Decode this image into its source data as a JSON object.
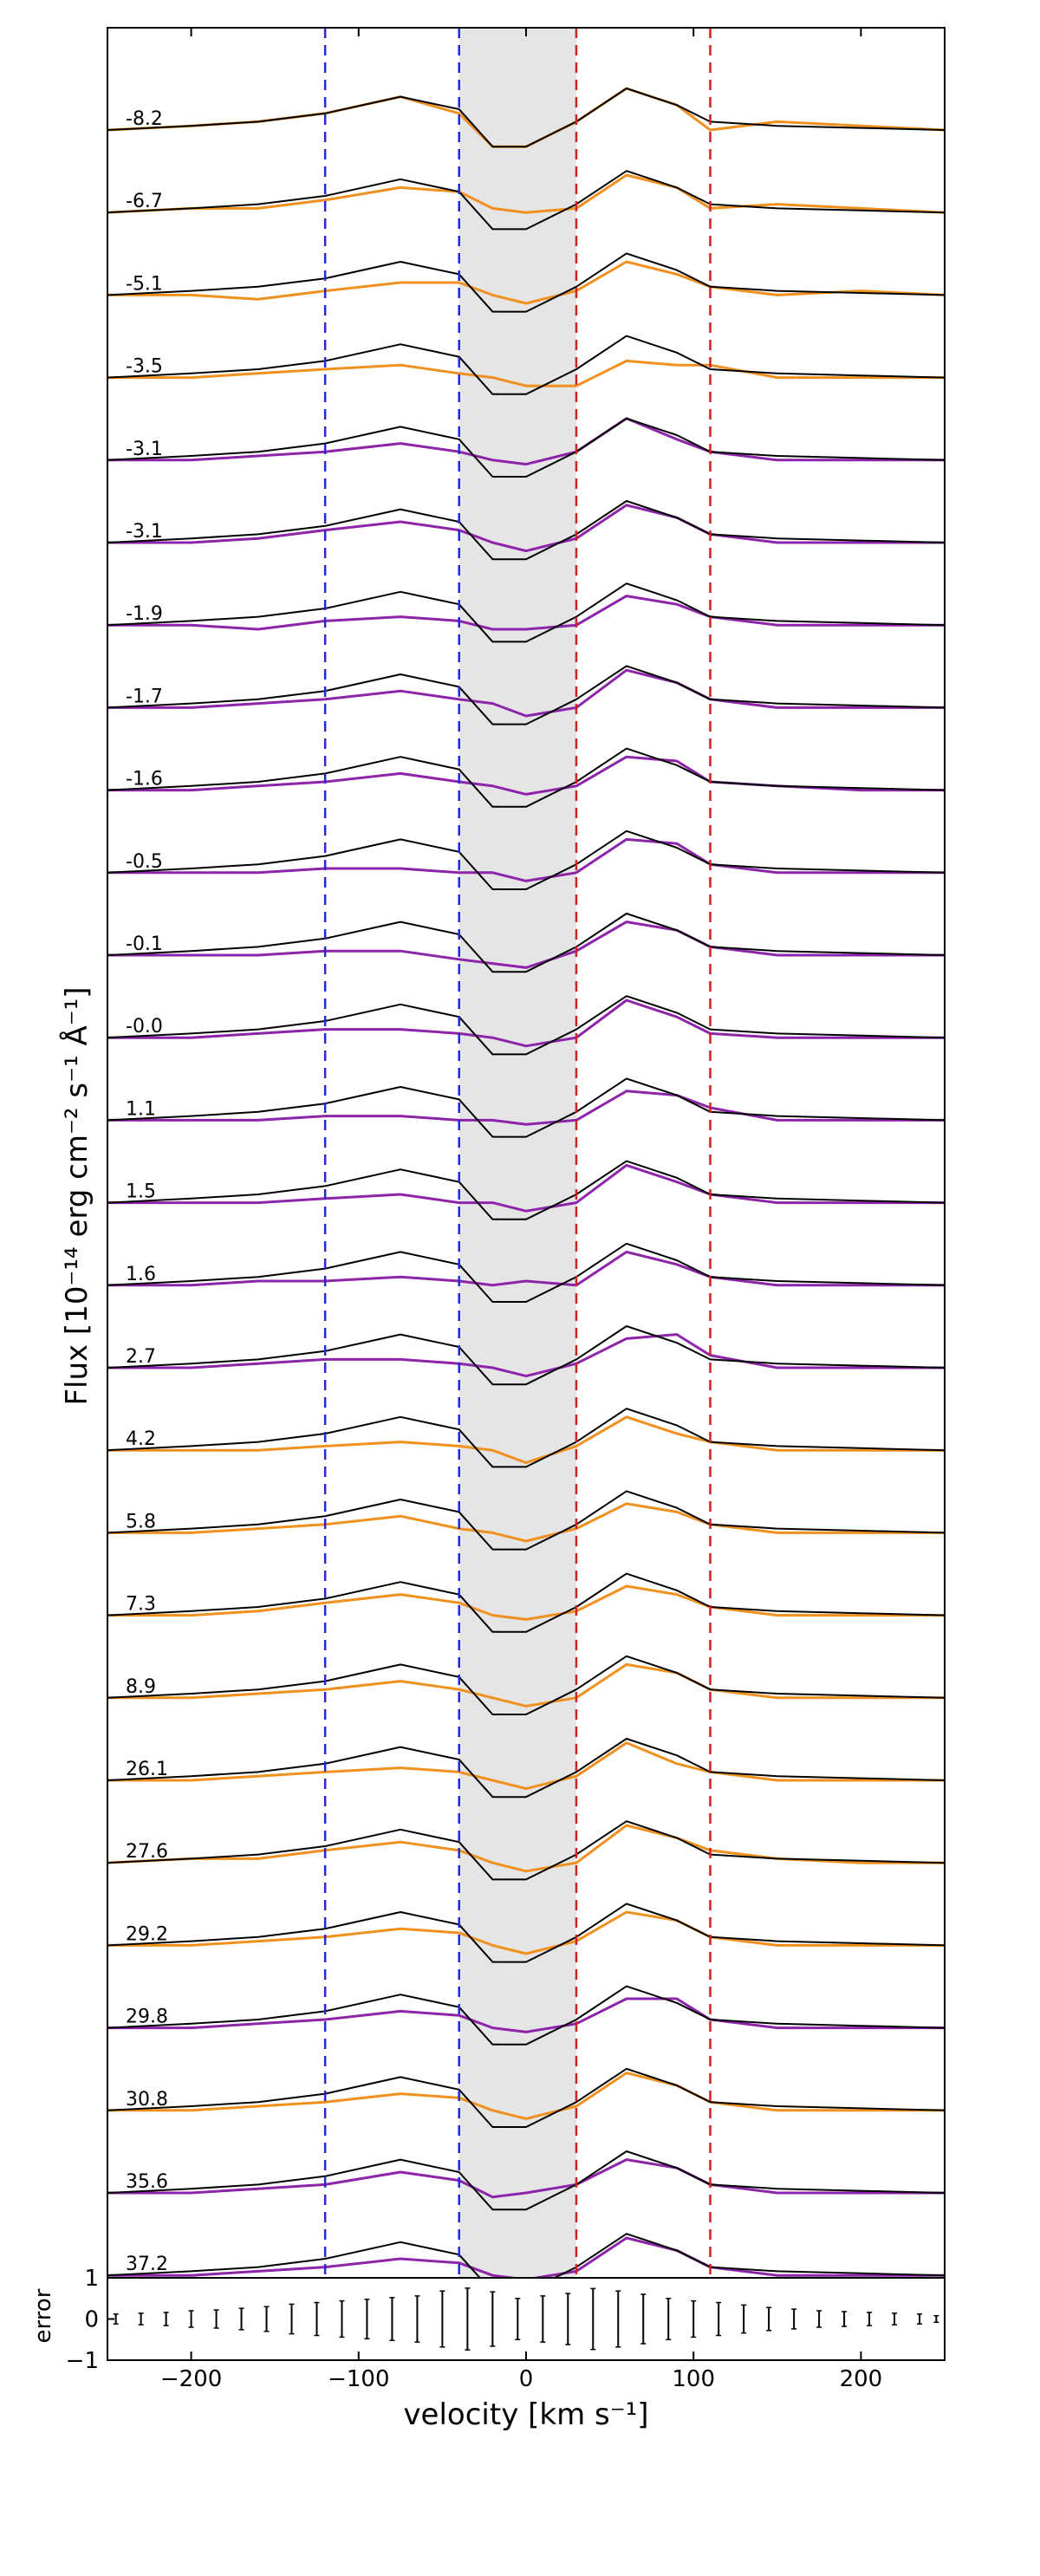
{
  "chart_data": {
    "type": "line",
    "title": "",
    "xlabel": "velocity [km s⁻¹]",
    "ylabel": "Flux [10⁻¹⁴ erg cm⁻² s⁻¹ Å⁻¹]",
    "xlim": [
      -250,
      250
    ],
    "xticks": [
      -200,
      -100,
      0,
      100,
      200
    ],
    "xtick_labels": [
      "−200",
      "−100",
      "0",
      "100",
      "200"
    ],
    "shaded_region": [
      -40,
      30
    ],
    "blue_dashed_lines": [
      -120,
      -40
    ],
    "red_dashed_lines": [
      30,
      110
    ],
    "colors": {
      "orange": "#f0901e",
      "purple": "#8e24aa",
      "model": "#000000",
      "shade": "#e5e5e5",
      "blue": "#1f2bd6",
      "red": "#d42020"
    },
    "series": [
      {
        "label": "-8.2",
        "color": "orange",
        "shape": [
          0.0,
          0.2,
          0.4,
          0.8,
          1.6,
          0.8,
          -0.8,
          -0.8,
          0.4,
          2.0,
          1.2,
          0.0,
          0.4,
          0.2,
          0.0
        ]
      },
      {
        "label": "-6.7",
        "color": "orange",
        "shape": [
          0.0,
          0.2,
          0.2,
          0.6,
          1.2,
          1.0,
          0.2,
          0.0,
          0.2,
          1.8,
          1.2,
          0.2,
          0.4,
          0.2,
          0.0
        ]
      },
      {
        "label": "-5.1",
        "color": "orange",
        "shape": [
          0.0,
          0.0,
          -0.2,
          0.2,
          0.6,
          0.6,
          0.0,
          -0.4,
          0.2,
          1.6,
          1.0,
          0.4,
          0.0,
          0.2,
          0.0
        ]
      },
      {
        "label": "-3.5",
        "color": "orange",
        "shape": [
          0.0,
          0.0,
          0.2,
          0.4,
          0.6,
          0.2,
          0.0,
          -0.4,
          -0.4,
          0.8,
          0.6,
          0.6,
          0.0,
          0.0,
          0.0
        ]
      },
      {
        "label": "-3.1",
        "color": "purple",
        "shape": [
          0.0,
          0.0,
          0.2,
          0.4,
          0.8,
          0.4,
          0.0,
          -0.2,
          0.4,
          2.0,
          1.0,
          0.4,
          0.0,
          0.0,
          0.0
        ]
      },
      {
        "label": "-3.1",
        "color": "purple",
        "shape": [
          0.0,
          0.0,
          0.2,
          0.6,
          1.0,
          0.6,
          0.0,
          -0.4,
          0.2,
          1.8,
          1.2,
          0.4,
          0.0,
          0.0,
          0.0
        ]
      },
      {
        "label": "-1.9",
        "color": "purple",
        "shape": [
          0.0,
          0.0,
          -0.2,
          0.2,
          0.4,
          0.2,
          -0.2,
          -0.2,
          0.0,
          1.4,
          1.0,
          0.4,
          0.0,
          0.0,
          0.0
        ]
      },
      {
        "label": "-1.7",
        "color": "purple",
        "shape": [
          0.0,
          0.0,
          0.2,
          0.4,
          0.8,
          0.4,
          0.2,
          -0.4,
          0.0,
          1.8,
          1.2,
          0.4,
          0.0,
          0.0,
          0.0
        ]
      },
      {
        "label": "-1.6",
        "color": "purple",
        "shape": [
          0.0,
          0.0,
          0.2,
          0.4,
          0.8,
          0.4,
          0.2,
          -0.2,
          0.2,
          1.6,
          1.4,
          0.4,
          0.2,
          0.0,
          0.0
        ]
      },
      {
        "label": "-0.5",
        "color": "purple",
        "shape": [
          0.0,
          0.0,
          0.0,
          0.2,
          0.2,
          0.0,
          0.0,
          -0.4,
          0.0,
          1.6,
          1.4,
          0.4,
          0.0,
          0.0,
          0.0
        ]
      },
      {
        "label": "-0.1",
        "color": "purple",
        "shape": [
          0.0,
          0.0,
          0.0,
          0.2,
          0.2,
          -0.2,
          -0.4,
          -0.6,
          0.2,
          1.6,
          1.2,
          0.4,
          0.0,
          0.0,
          0.0
        ]
      },
      {
        "label": "-0.0",
        "color": "purple",
        "shape": [
          0.0,
          0.0,
          0.2,
          0.4,
          0.4,
          0.2,
          0.0,
          -0.4,
          0.0,
          1.8,
          1.0,
          0.2,
          0.0,
          0.0,
          0.0
        ]
      },
      {
        "label": "1.1",
        "color": "purple",
        "shape": [
          0.0,
          0.0,
          0.0,
          0.2,
          0.2,
          0.0,
          0.0,
          -0.2,
          0.0,
          1.4,
          1.2,
          0.6,
          0.0,
          0.0,
          0.0
        ]
      },
      {
        "label": "1.5",
        "color": "purple",
        "shape": [
          0.0,
          0.0,
          0.0,
          0.2,
          0.4,
          0.0,
          0.0,
          -0.4,
          0.0,
          1.8,
          1.0,
          0.4,
          0.0,
          0.0,
          0.0
        ]
      },
      {
        "label": "1.6",
        "color": "purple",
        "shape": [
          0.0,
          0.0,
          0.2,
          0.2,
          0.4,
          0.2,
          0.0,
          0.2,
          0.0,
          1.6,
          1.0,
          0.4,
          0.0,
          0.0,
          0.0
        ]
      },
      {
        "label": "2.7",
        "color": "purple",
        "shape": [
          0.0,
          0.0,
          0.2,
          0.4,
          0.4,
          0.2,
          0.0,
          -0.4,
          0.2,
          1.4,
          1.6,
          0.6,
          0.0,
          0.0,
          0.0
        ]
      },
      {
        "label": "4.2",
        "color": "orange",
        "shape": [
          0.0,
          0.0,
          0.0,
          0.2,
          0.4,
          0.2,
          0.0,
          -0.6,
          0.2,
          1.6,
          0.8,
          0.4,
          0.0,
          0.0,
          0.0
        ]
      },
      {
        "label": "5.8",
        "color": "orange",
        "shape": [
          0.0,
          0.0,
          0.2,
          0.4,
          0.8,
          0.2,
          0.0,
          -0.4,
          0.2,
          1.4,
          1.0,
          0.4,
          0.0,
          0.0,
          0.0
        ]
      },
      {
        "label": "7.3",
        "color": "orange",
        "shape": [
          0.0,
          0.0,
          0.2,
          0.6,
          1.0,
          0.6,
          0.0,
          -0.2,
          0.2,
          1.4,
          1.0,
          0.4,
          0.0,
          0.0,
          0.0
        ]
      },
      {
        "label": "8.9",
        "color": "orange",
        "shape": [
          0.0,
          0.0,
          0.2,
          0.4,
          0.8,
          0.4,
          0.0,
          -0.4,
          0.0,
          1.6,
          1.2,
          0.4,
          0.0,
          0.0,
          0.0
        ]
      },
      {
        "label": "26.1",
        "color": "orange",
        "shape": [
          0.0,
          0.0,
          0.2,
          0.4,
          0.6,
          0.4,
          0.0,
          -0.4,
          0.2,
          1.8,
          0.8,
          0.4,
          0.0,
          0.0,
          0.0
        ]
      },
      {
        "label": "27.6",
        "color": "orange",
        "shape": [
          0.0,
          0.2,
          0.2,
          0.6,
          1.0,
          0.6,
          0.0,
          -0.4,
          0.0,
          1.8,
          1.2,
          0.6,
          0.2,
          0.0,
          0.0
        ]
      },
      {
        "label": "29.2",
        "color": "orange",
        "shape": [
          0.0,
          0.0,
          0.2,
          0.4,
          0.8,
          0.6,
          0.0,
          -0.4,
          0.2,
          1.6,
          1.2,
          0.4,
          0.0,
          0.0,
          0.0
        ]
      },
      {
        "label": "29.8",
        "color": "purple",
        "shape": [
          0.0,
          0.0,
          0.2,
          0.4,
          0.8,
          0.6,
          0.0,
          -0.2,
          0.2,
          1.4,
          1.4,
          0.4,
          0.0,
          0.0,
          0.0
        ]
      },
      {
        "label": "30.8",
        "color": "orange",
        "shape": [
          0.0,
          0.0,
          0.2,
          0.4,
          0.8,
          0.6,
          0.0,
          -0.4,
          0.2,
          1.8,
          1.2,
          0.4,
          0.0,
          0.0,
          0.0
        ]
      },
      {
        "label": "35.6",
        "color": "purple",
        "shape": [
          0.0,
          0.0,
          0.2,
          0.4,
          1.0,
          0.6,
          -0.2,
          0.0,
          0.4,
          1.6,
          1.2,
          0.4,
          0.0,
          0.0,
          0.0
        ]
      },
      {
        "label": "37.2",
        "color": "purple",
        "shape": [
          0.0,
          0.0,
          0.2,
          0.4,
          0.8,
          0.6,
          0.0,
          -0.2,
          0.2,
          1.8,
          1.2,
          0.4,
          0.0,
          0.0,
          0.0
        ]
      }
    ],
    "shape_velocities": [
      -250,
      -200,
      -160,
      -120,
      -75,
      -40,
      -20,
      0,
      30,
      60,
      90,
      110,
      150,
      200,
      250
    ],
    "model_shape": [
      0.0,
      0.2,
      0.4,
      0.8,
      1.6,
      1.0,
      -0.8,
      -0.8,
      0.4,
      2.0,
      1.2,
      0.4,
      0.2,
      0.1,
      0.0
    ],
    "error_panel": {
      "ylabel": "error",
      "ylim": [
        -1,
        1
      ],
      "yticks": [
        -1,
        0,
        1
      ],
      "ytick_labels": [
        "−1",
        "0",
        "1"
      ],
      "velocities": [
        -245,
        -230,
        -215,
        -200,
        -185,
        -170,
        -155,
        -140,
        -125,
        -110,
        -95,
        -80,
        -65,
        -50,
        -35,
        -20,
        -5,
        10,
        25,
        40,
        55,
        70,
        85,
        100,
        115,
        130,
        145,
        160,
        175,
        190,
        205,
        220,
        235,
        245
      ],
      "errors": [
        0.12,
        0.14,
        0.16,
        0.2,
        0.22,
        0.26,
        0.3,
        0.36,
        0.4,
        0.44,
        0.48,
        0.52,
        0.56,
        0.68,
        0.75,
        0.66,
        0.5,
        0.56,
        0.62,
        0.74,
        0.68,
        0.6,
        0.5,
        0.44,
        0.4,
        0.34,
        0.28,
        0.24,
        0.2,
        0.18,
        0.16,
        0.14,
        0.12,
        0.08
      ]
    }
  }
}
